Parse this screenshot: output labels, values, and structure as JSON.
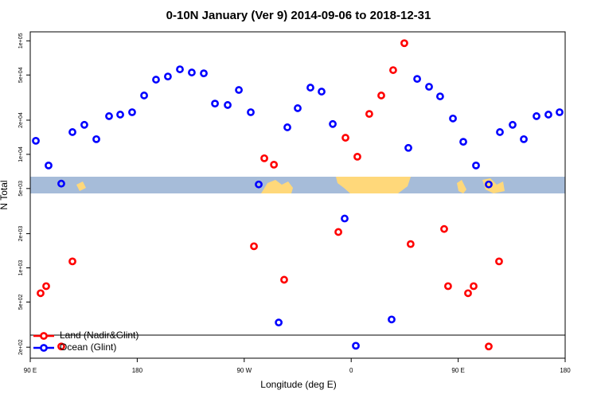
{
  "chart_data": {
    "type": "scatter",
    "title": "0-10N January (Ver 9)   2014-09-06 to 2018-12-31",
    "xlabel": "Longitude (deg E)",
    "ylabel": "N Total",
    "xlim": [
      90,
      540
    ],
    "xticks": [
      {
        "value": 90,
        "label": "90 E"
      },
      {
        "value": 180,
        "label": "180"
      },
      {
        "value": 270,
        "label": "90 W"
      },
      {
        "value": 360,
        "label": "0"
      },
      {
        "value": 450,
        "label": "90 E"
      },
      {
        "value": 540,
        "label": "180"
      }
    ],
    "ylim": [
      160,
      120000
    ],
    "yscale": "log",
    "yticks": [
      {
        "value": 200,
        "label": "2e+02"
      },
      {
        "value": 500,
        "label": "5e+02"
      },
      {
        "value": 1000,
        "label": "1e+03"
      },
      {
        "value": 2000,
        "label": "2e+03"
      },
      {
        "value": 5000,
        "label": "5e+03"
      },
      {
        "value": 10000,
        "label": "1e+04"
      },
      {
        "value": 20000,
        "label": "2e+04"
      },
      {
        "value": 50000,
        "label": "5e+04"
      },
      {
        "value": 100000,
        "label": "1e+05"
      }
    ],
    "legend": "bottom-left",
    "series": [
      {
        "name": "Land (Nadir&Glint)",
        "color": "#ff0000",
        "x": [
          98.7,
          103.4,
          116.1,
          125.5,
          278.2,
          286.9,
          295,
          303.6,
          349.2,
          355.2,
          365.2,
          375.2,
          385.3,
          395.3,
          404.7,
          410,
          438.2,
          441.5,
          458.3,
          463,
          475.7,
          484.4
        ],
        "values": [
          598,
          690,
          203,
          1140,
          1550,
          9230,
          8110,
          786,
          2070,
          14000,
          9530,
          22700,
          33000,
          55200,
          95300,
          1620,
          2200,
          690,
          598,
          690,
          203,
          1140
        ]
      },
      {
        "name": "Ocean (Glint)",
        "color": "#0000ff",
        "x": [
          94.7,
          105.4,
          116.1,
          125.5,
          135.5,
          145.6,
          156.3,
          165.7,
          175.7,
          185.8,
          195.8,
          205.8,
          215.9,
          225.9,
          236,
          245.4,
          256.1,
          265.5,
          275.5,
          282.2,
          299,
          306.3,
          315,
          325.7,
          335.1,
          344.5,
          354.5,
          363.9,
          394,
          408.1,
          415.5,
          425.5,
          434.8,
          445.6,
          454.3,
          465,
          475.7,
          485.1,
          495.8,
          505.2,
          515.9,
          525.9,
          535.3
        ],
        "values": [
          13160,
          7980,
          5520,
          15700,
          18200,
          13600,
          21700,
          22400,
          23500,
          33000,
          45500,
          48500,
          56100,
          52600,
          51700,
          28000,
          27200,
          36900,
          23500,
          5430,
          330,
          17300,
          25500,
          38700,
          35700,
          18500,
          2720,
          206,
          351,
          11400,
          46200,
          39400,
          32400,
          20700,
          12900,
          7980,
          5430,
          15700,
          18200,
          13600,
          21700,
          22400,
          23500
        ]
      }
    ]
  }
}
